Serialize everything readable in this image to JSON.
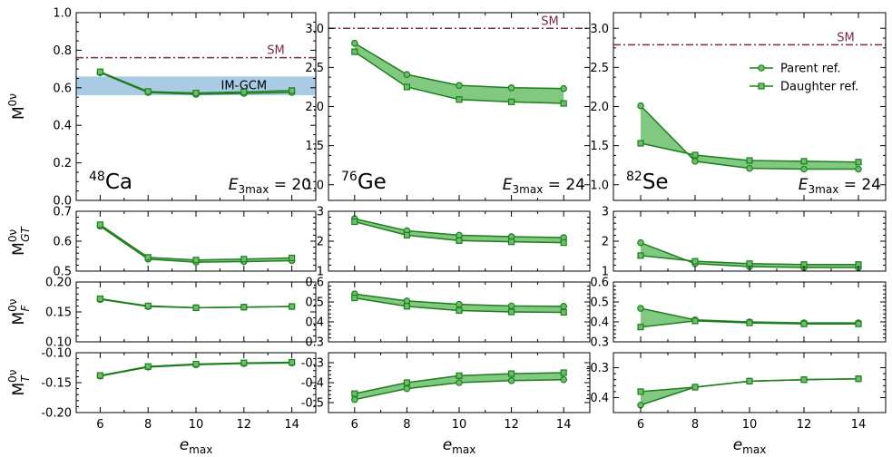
{
  "figure": {
    "xlabel": "e",
    "xlabel_sub": "max",
    "ylabels": [
      {
        "main": "M",
        "sup": "0ν",
        "sub": ""
      },
      {
        "main": "M",
        "sup": "0ν",
        "sub": "GT"
      },
      {
        "main": "M",
        "sup": "0ν",
        "sub": "F"
      },
      {
        "main": "M",
        "sup": "0ν",
        "sub": "T"
      }
    ],
    "legend": {
      "parent": "Parent ref.",
      "daughter": "Daughter ref."
    },
    "colors": {
      "line": "#1e7d1e",
      "fill": "#6bbf6b",
      "sm": "#7a2a45",
      "imgcm_band": "#a9cbe4"
    }
  },
  "chart_data": {
    "type": "line",
    "x": [
      6,
      8,
      10,
      12,
      14
    ],
    "xlim": [
      5,
      15
    ],
    "xticks": [
      "6",
      "8",
      "10",
      "12",
      "14"
    ],
    "nuclei": [
      {
        "isotope_mass": "48",
        "isotope_symbol": "Ca",
        "e3max_label_main": "E",
        "e3max_label_sub": "3max",
        "e3max_label_value": " = 20",
        "panels": [
          {
            "quantity": "M0v",
            "ylim": [
              0.0,
              1.0
            ],
            "yticks": [
              "0.0",
              "0.2",
              "0.4",
              "0.6",
              "0.8",
              "1.0"
            ],
            "yticks_values": [
              0.0,
              0.2,
              0.4,
              0.6,
              0.8,
              1.0
            ],
            "sm_value": 0.76,
            "sm_label": "SM",
            "imgcm_band": [
              0.56,
              0.66
            ],
            "imgcm_label": "IM-GCM",
            "series": [
              {
                "name": "Parent ref.",
                "marker": "circle",
                "values": [
                  0.68,
                  0.575,
                  0.565,
                  0.57,
                  0.575
                ]
              },
              {
                "name": "Daughter ref.",
                "marker": "square",
                "values": [
                  0.685,
                  0.58,
                  0.572,
                  0.578,
                  0.585
                ]
              }
            ]
          },
          {
            "quantity": "MGT",
            "ylim": [
              0.5,
              0.7
            ],
            "yticks": [
              "0.5",
              "0.6",
              "0.7"
            ],
            "yticks_values": [
              0.5,
              0.6,
              0.7
            ],
            "series": [
              {
                "name": "Parent ref.",
                "marker": "circle",
                "values": [
                  0.65,
                  0.54,
                  0.53,
                  0.532,
                  0.535
                ]
              },
              {
                "name": "Daughter ref.",
                "marker": "square",
                "values": [
                  0.655,
                  0.546,
                  0.537,
                  0.54,
                  0.544
                ]
              }
            ]
          },
          {
            "quantity": "MF",
            "ylim": [
              0.1,
              0.2
            ],
            "yticks": [
              "0.10",
              "0.15",
              "0.20"
            ],
            "yticks_values": [
              0.1,
              0.15,
              0.2
            ],
            "series": [
              {
                "name": "Parent ref.",
                "marker": "circle",
                "values": [
                  0.171,
                  0.159,
                  0.157,
                  0.158,
                  0.159
                ]
              },
              {
                "name": "Daughter ref.",
                "marker": "square",
                "values": [
                  0.172,
                  0.16,
                  0.157,
                  0.158,
                  0.159
                ]
              }
            ]
          },
          {
            "quantity": "MT",
            "ylim": [
              -0.2,
              -0.1
            ],
            "yticks": [
              "-0.20",
              "-0.15",
              "-0.10"
            ],
            "yticks_values": [
              -0.2,
              -0.15,
              -0.1
            ],
            "series": [
              {
                "name": "Parent ref.",
                "marker": "circle",
                "values": [
                  -0.139,
                  -0.124,
                  -0.12,
                  -0.118,
                  -0.117
                ]
              },
              {
                "name": "Daughter ref.",
                "marker": "square",
                "values": [
                  -0.138,
                  -0.123,
                  -0.119,
                  -0.117,
                  -0.116
                ]
              }
            ]
          }
        ]
      },
      {
        "isotope_mass": "76",
        "isotope_symbol": "Ge",
        "e3max_label_main": "E",
        "e3max_label_sub": "3max",
        "e3max_label_value": " = 24",
        "panels": [
          {
            "quantity": "M0v",
            "ylim": [
              0.8,
              3.2
            ],
            "yticks": [
              "1.0",
              "1.5",
              "2.0",
              "2.5",
              "3.0"
            ],
            "yticks_values": [
              1.0,
              1.5,
              2.0,
              2.5,
              3.0
            ],
            "sm_value": 3.0,
            "sm_label": "SM",
            "series": [
              {
                "name": "Parent ref.",
                "marker": "circle",
                "values": [
                  2.81,
                  2.41,
                  2.27,
                  2.24,
                  2.23
                ]
              },
              {
                "name": "Daughter ref.",
                "marker": "square",
                "values": [
                  2.7,
                  2.25,
                  2.09,
                  2.06,
                  2.04
                ]
              }
            ]
          },
          {
            "quantity": "MGT",
            "ylim": [
              1,
              3
            ],
            "yticks": [
              "1",
              "2",
              "3"
            ],
            "yticks_values": [
              1,
              2,
              3
            ],
            "series": [
              {
                "name": "Parent ref.",
                "marker": "circle",
                "values": [
                  2.75,
                  2.35,
                  2.2,
                  2.15,
                  2.12
                ]
              },
              {
                "name": "Daughter ref.",
                "marker": "square",
                "values": [
                  2.65,
                  2.2,
                  2.02,
                  1.98,
                  1.95
                ]
              }
            ]
          },
          {
            "quantity": "MF",
            "ylim": [
              0.3,
              0.6
            ],
            "yticks": [
              "0.3",
              "0.4",
              "0.5",
              "0.6"
            ],
            "yticks_values": [
              0.3,
              0.4,
              0.5,
              0.6
            ],
            "series": [
              {
                "name": "Parent ref.",
                "marker": "circle",
                "values": [
                  0.54,
                  0.505,
                  0.488,
                  0.48,
                  0.478
                ]
              },
              {
                "name": "Daughter ref.",
                "marker": "square",
                "values": [
                  0.52,
                  0.478,
                  0.457,
                  0.45,
                  0.448
                ]
              }
            ]
          },
          {
            "quantity": "MT",
            "ylim": [
              -0.55,
              -0.25
            ],
            "yticks": [
              "-0.5",
              "-0.4",
              "-0.3"
            ],
            "yticks_values": [
              -0.5,
              -0.4,
              -0.3
            ],
            "series": [
              {
                "name": "Parent ref.",
                "marker": "circle",
                "values": [
                  -0.485,
                  -0.43,
                  -0.4,
                  -0.39,
                  -0.385
                ]
              },
              {
                "name": "Daughter ref.",
                "marker": "square",
                "values": [
                  -0.455,
                  -0.4,
                  -0.365,
                  -0.355,
                  -0.35
                ]
              }
            ]
          }
        ]
      },
      {
        "isotope_mass": "82",
        "isotope_symbol": "Se",
        "e3max_label_main": "E",
        "e3max_label_sub": "3max",
        "e3max_label_value": " = 24",
        "panels": [
          {
            "quantity": "M0v",
            "ylim": [
              0.8,
              3.2
            ],
            "yticks": [
              "1.0",
              "1.5",
              "2.0",
              "2.5",
              "3.0"
            ],
            "yticks_values": [
              1.0,
              1.5,
              2.0,
              2.5,
              3.0
            ],
            "sm_value": 2.79,
            "sm_label": "SM",
            "legend": true,
            "series": [
              {
                "name": "Parent ref.",
                "marker": "circle",
                "values": [
                  2.01,
                  1.3,
                  1.21,
                  1.2,
                  1.2
                ]
              },
              {
                "name": "Daughter ref.",
                "marker": "square",
                "values": [
                  1.53,
                  1.38,
                  1.31,
                  1.3,
                  1.29
                ]
              }
            ]
          },
          {
            "quantity": "MGT",
            "ylim": [
              1,
              3
            ],
            "yticks": [
              "1",
              "2",
              "3"
            ],
            "yticks_values": [
              1,
              2,
              3
            ],
            "series": [
              {
                "name": "Parent ref.",
                "marker": "circle",
                "values": [
                  1.95,
                  1.25,
                  1.15,
                  1.12,
                  1.12
                ]
              },
              {
                "name": "Daughter ref.",
                "marker": "square",
                "values": [
                  1.52,
                  1.33,
                  1.25,
                  1.22,
                  1.22
                ]
              }
            ]
          },
          {
            "quantity": "MF",
            "ylim": [
              0.3,
              0.6
            ],
            "yticks": [
              "0.3",
              "0.4",
              "0.5",
              "0.6"
            ],
            "yticks_values": [
              0.3,
              0.4,
              0.5,
              0.6
            ],
            "series": [
              {
                "name": "Parent ref.",
                "marker": "circle",
                "values": [
                  0.468,
                  0.41,
                  0.4,
                  0.395,
                  0.395
                ]
              },
              {
                "name": "Daughter ref.",
                "marker": "square",
                "values": [
                  0.374,
                  0.405,
                  0.395,
                  0.39,
                  0.39
                ]
              }
            ]
          },
          {
            "quantity": "MT",
            "ylim": [
              -0.45,
              -0.25
            ],
            "yticks": [
              "-0.4",
              "-0.3"
            ],
            "yticks_values": [
              -0.4,
              -0.3
            ],
            "series": [
              {
                "name": "Parent ref.",
                "marker": "circle",
                "values": [
                  -0.425,
                  -0.365,
                  -0.345,
                  -0.34,
                  -0.337
                ]
              },
              {
                "name": "Daughter ref.",
                "marker": "square",
                "values": [
                  -0.38,
                  -0.365,
                  -0.345,
                  -0.34,
                  -0.337
                ]
              }
            ]
          }
        ]
      }
    ]
  }
}
